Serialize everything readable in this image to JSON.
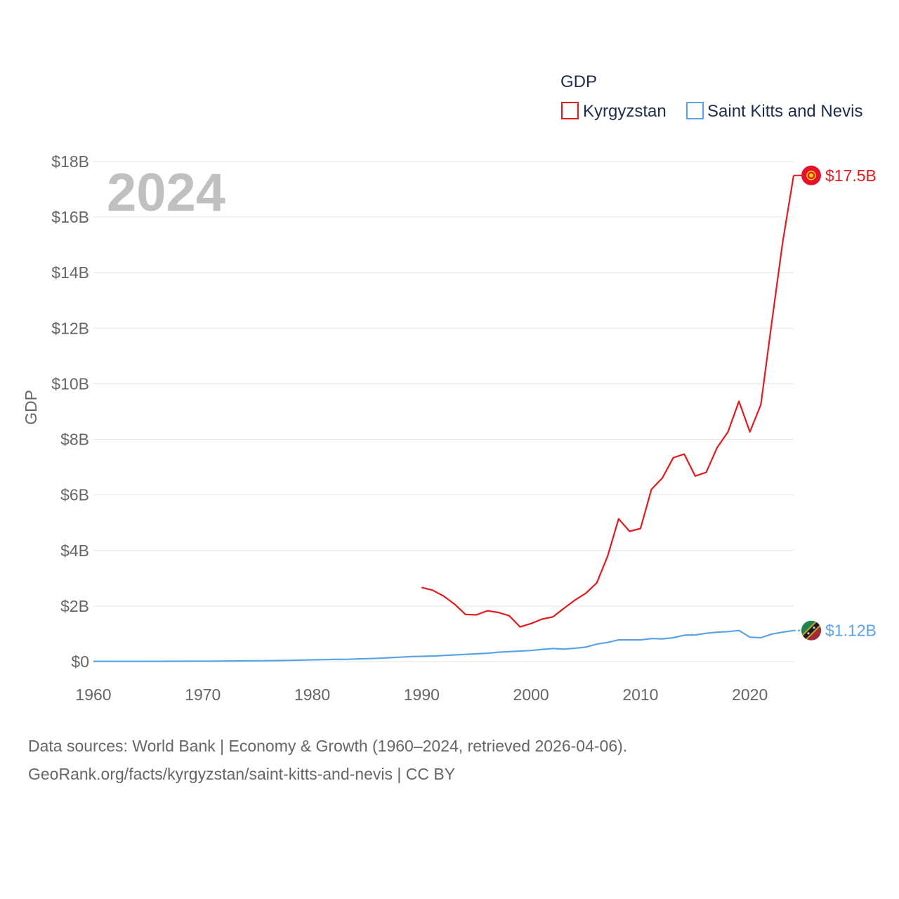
{
  "chart_data": {
    "type": "line",
    "year_label": "2024",
    "ylabel": "GDP",
    "legend": {
      "title": "GDP",
      "position": "top-right"
    },
    "xlim": [
      1960,
      2024
    ],
    "ylim": [
      0,
      18
    ],
    "y_unit": "billion USD",
    "x_ticks": [
      1960,
      1970,
      1980,
      1990,
      2000,
      2010,
      2020
    ],
    "x_tick_labels": [
      "1960",
      "1970",
      "1980",
      "1990",
      "2000",
      "2010",
      "2020"
    ],
    "y_ticks": [
      0,
      2,
      4,
      6,
      8,
      10,
      12,
      14,
      16,
      18
    ],
    "y_tick_labels": [
      "$0",
      "$2B",
      "$4B",
      "$6B",
      "$8B",
      "$10B",
      "$12B",
      "$14B",
      "$16B",
      "$18B"
    ],
    "series": [
      {
        "name": "Kyrgyzstan",
        "color": "#e31a1c",
        "end_label": "$17.5B",
        "x": [
          1990,
          1991,
          1992,
          1993,
          1994,
          1995,
          1996,
          1997,
          1998,
          1999,
          2000,
          2001,
          2002,
          2003,
          2004,
          2005,
          2006,
          2007,
          2008,
          2009,
          2010,
          2011,
          2012,
          2013,
          2014,
          2015,
          2016,
          2017,
          2018,
          2019,
          2020,
          2021,
          2022,
          2023,
          2024
        ],
        "values": [
          2.67,
          2.57,
          2.36,
          2.07,
          1.7,
          1.68,
          1.83,
          1.77,
          1.65,
          1.25,
          1.37,
          1.53,
          1.61,
          1.92,
          2.21,
          2.46,
          2.83,
          3.8,
          5.14,
          4.69,
          4.79,
          6.2,
          6.61,
          7.34,
          7.47,
          6.68,
          6.81,
          7.7,
          8.27,
          9.37,
          8.27,
          9.25,
          12.2,
          15.1,
          17.5
        ]
      },
      {
        "name": "Saint Kitts and Nevis",
        "color": "#5ba3e6",
        "end_label": "$1.12B",
        "x": [
          1960,
          1961,
          1962,
          1963,
          1964,
          1965,
          1966,
          1967,
          1968,
          1969,
          1970,
          1971,
          1972,
          1973,
          1974,
          1975,
          1976,
          1977,
          1978,
          1979,
          1980,
          1981,
          1982,
          1983,
          1984,
          1985,
          1986,
          1987,
          1988,
          1989,
          1990,
          1991,
          1992,
          1993,
          1994,
          1995,
          1996,
          1997,
          1998,
          1999,
          2000,
          2001,
          2002,
          2003,
          2004,
          2005,
          2006,
          2007,
          2008,
          2009,
          2010,
          2011,
          2012,
          2013,
          2014,
          2015,
          2016,
          2017,
          2018,
          2019,
          2020,
          2021,
          2022,
          2023,
          2024
        ],
        "values": [
          0.01,
          0.01,
          0.01,
          0.01,
          0.01,
          0.01,
          0.01,
          0.012,
          0.013,
          0.014,
          0.015,
          0.016,
          0.019,
          0.022,
          0.027,
          0.031,
          0.033,
          0.039,
          0.046,
          0.054,
          0.062,
          0.071,
          0.078,
          0.082,
          0.093,
          0.105,
          0.12,
          0.14,
          0.16,
          0.18,
          0.19,
          0.2,
          0.22,
          0.24,
          0.26,
          0.28,
          0.3,
          0.34,
          0.36,
          0.38,
          0.4,
          0.44,
          0.47,
          0.45,
          0.48,
          0.52,
          0.63,
          0.69,
          0.78,
          0.78,
          0.78,
          0.83,
          0.82,
          0.86,
          0.95,
          0.96,
          1.02,
          1.06,
          1.08,
          1.12,
          0.88,
          0.86,
          0.99,
          1.06,
          1.12
        ]
      }
    ],
    "source_line1": "Data sources: World Bank | Economy & Growth (1960–2024, retrieved 2026-04-06).",
    "source_line2": "GeoRank.org/facts/kyrgyzstan/saint-kitts-and-nevis | CC BY"
  }
}
